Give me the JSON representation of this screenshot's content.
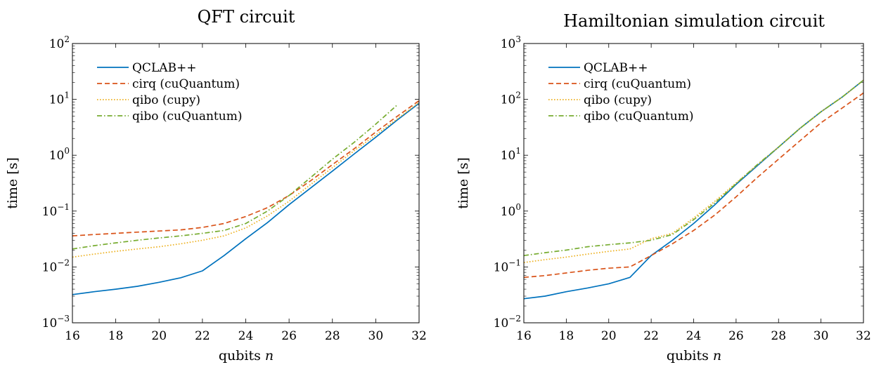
{
  "chart_data": [
    {
      "type": "line",
      "title": "QFT circuit",
      "xlabel": "qubits n",
      "ylabel": "time [s]",
      "xlim": [
        16,
        32
      ],
      "ylim": [
        0.001,
        100
      ],
      "y_scale": "log",
      "x_ticks": [
        16,
        18,
        20,
        22,
        24,
        26,
        28,
        30,
        32
      ],
      "y_ticks": [
        0.001,
        0.01,
        0.1,
        1,
        10,
        100
      ],
      "y_tick_labels": [
        {
          "base": "10",
          "exp": "−3"
        },
        {
          "base": "10",
          "exp": "−2"
        },
        {
          "base": "10",
          "exp": "−1"
        },
        {
          "base": "10",
          "exp": "0"
        },
        {
          "base": "10",
          "exp": "1"
        },
        {
          "base": "10",
          "exp": "2"
        }
      ],
      "legend_position": "top-left",
      "grid": false,
      "series": [
        {
          "name": "QCLAB++",
          "color": "#0072BD",
          "dash": "solid",
          "x": [
            16,
            17,
            18,
            19,
            20,
            21,
            22,
            23,
            24,
            25,
            26,
            27,
            28,
            29,
            30,
            31,
            32
          ],
          "y": [
            0.0032,
            0.0036,
            0.004,
            0.0045,
            0.0053,
            0.0064,
            0.0085,
            0.016,
            0.032,
            0.062,
            0.13,
            0.26,
            0.52,
            1.05,
            2.1,
            4.3,
            8.5
          ]
        },
        {
          "name": "cirq (cuQuantum)",
          "color": "#D95319",
          "dash": "dashed",
          "x": [
            16,
            17,
            18,
            19,
            20,
            21,
            22,
            23,
            24,
            25,
            26,
            27,
            28,
            29,
            30,
            31,
            32
          ],
          "y": [
            0.036,
            0.038,
            0.04,
            0.042,
            0.044,
            0.046,
            0.051,
            0.06,
            0.08,
            0.115,
            0.19,
            0.35,
            0.68,
            1.3,
            2.6,
            5.0,
            9.5
          ]
        },
        {
          "name": "qibo (cupy)",
          "color": "#EDB120",
          "dash": "dotted",
          "x": [
            16,
            17,
            18,
            19,
            20,
            21,
            22,
            23,
            24,
            25,
            26,
            27,
            28,
            29,
            30,
            31,
            32
          ],
          "y": [
            0.015,
            0.017,
            0.019,
            0.021,
            0.023,
            0.026,
            0.03,
            0.036,
            0.05,
            0.082,
            0.15,
            0.3,
            0.6,
            1.2,
            2.3,
            4.5,
            8.8
          ]
        },
        {
          "name": "qibo (cuQuantum)",
          "color": "#77AC30",
          "dash": "dashdot",
          "x": [
            16,
            17,
            18,
            19,
            20,
            21,
            22,
            23,
            24,
            25,
            26,
            27,
            28,
            29,
            30,
            31
          ],
          "y": [
            0.021,
            0.024,
            0.027,
            0.03,
            0.033,
            0.036,
            0.04,
            0.045,
            0.06,
            0.1,
            0.19,
            0.4,
            0.85,
            1.7,
            3.6,
            8.0
          ]
        }
      ]
    },
    {
      "type": "line",
      "title": "Hamiltonian simulation circuit",
      "xlabel": "qubits n",
      "ylabel": "time [s]",
      "xlim": [
        16,
        32
      ],
      "ylim": [
        0.01,
        1000
      ],
      "y_scale": "log",
      "x_ticks": [
        16,
        18,
        20,
        22,
        24,
        26,
        28,
        30,
        32
      ],
      "y_ticks": [
        0.01,
        0.1,
        1,
        10,
        100,
        1000
      ],
      "y_tick_labels": [
        {
          "base": "10",
          "exp": "−2"
        },
        {
          "base": "10",
          "exp": "−1"
        },
        {
          "base": "10",
          "exp": "0"
        },
        {
          "base": "10",
          "exp": "1"
        },
        {
          "base": "10",
          "exp": "2"
        },
        {
          "base": "10",
          "exp": "3"
        }
      ],
      "legend_position": "top-left",
      "grid": false,
      "series": [
        {
          "name": "QCLAB++",
          "color": "#0072BD",
          "dash": "solid",
          "x": [
            16,
            17,
            18,
            19,
            20,
            21,
            22,
            23,
            24,
            25,
            26,
            27,
            28,
            29,
            30,
            31,
            32
          ],
          "y": [
            0.027,
            0.03,
            0.036,
            0.042,
            0.05,
            0.065,
            0.16,
            0.3,
            0.6,
            1.3,
            3.0,
            6.5,
            14,
            30,
            60,
            110,
            220
          ]
        },
        {
          "name": "cirq (cuQuantum)",
          "color": "#D95319",
          "dash": "dashed",
          "x": [
            16,
            17,
            18,
            19,
            20,
            21,
            22,
            23,
            24,
            25,
            26,
            27,
            28,
            29,
            30,
            31,
            32
          ],
          "y": [
            0.065,
            0.07,
            0.078,
            0.087,
            0.095,
            0.1,
            0.16,
            0.26,
            0.45,
            0.85,
            1.8,
            4.0,
            8.5,
            18,
            38,
            70,
            130
          ]
        },
        {
          "name": "qibo (cupy)",
          "color": "#EDB120",
          "dash": "dotted",
          "x": [
            16,
            17,
            18,
            19,
            20,
            21,
            22,
            23,
            24,
            25,
            26,
            27,
            28,
            29,
            30,
            31,
            32
          ],
          "y": [
            0.12,
            0.135,
            0.15,
            0.17,
            0.19,
            0.21,
            0.32,
            0.4,
            0.75,
            1.5,
            3.2,
            6.7,
            14,
            30,
            60,
            110,
            220
          ]
        },
        {
          "name": "qibo (cuQuantum)",
          "color": "#77AC30",
          "dash": "dashdot",
          "x": [
            16,
            17,
            18,
            19,
            20,
            21,
            22,
            23,
            24,
            25,
            26,
            27,
            28,
            29,
            30,
            31,
            32
          ],
          "y": [
            0.16,
            0.18,
            0.2,
            0.23,
            0.25,
            0.27,
            0.3,
            0.38,
            0.7,
            1.4,
            3.1,
            6.8,
            14,
            30,
            60,
            110,
            220
          ]
        }
      ]
    }
  ]
}
